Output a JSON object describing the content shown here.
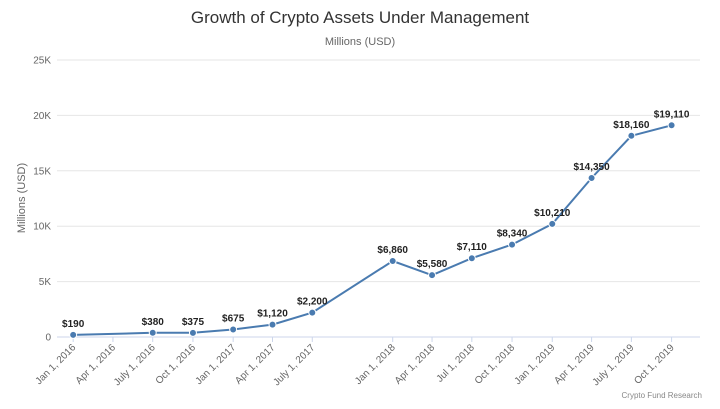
{
  "chart_data": {
    "type": "line",
    "title": "Growth of Crypto Assets Under Management",
    "subtitle": "Millions (USD)",
    "ylabel": "Millions (USD)",
    "xlabel": "",
    "credit": "Crypto Fund Research",
    "ylim": [
      0,
      25000
    ],
    "yticks": [
      0,
      5000,
      10000,
      15000,
      20000,
      25000
    ],
    "ytick_labels": [
      "0",
      "5K",
      "10K",
      "15K",
      "20K",
      "25K"
    ],
    "categories": [
      "Jan 1, 2016",
      "Apr 1, 2016",
      "July 1, 2016",
      "Oct 1, 2016",
      "Jan 1, 2017",
      "Apr 1, 2017",
      "July 1, 2017",
      "Jan 1, 2018",
      "Apr 1, 2018",
      "Jul 1, 2018",
      "Oct 1, 2018",
      "Jan 1, 2019",
      "Apr 1, 2019",
      "July 1, 2019",
      "Oct 1, 2019"
    ],
    "points": [
      {
        "date": "2016-01-01",
        "value": 190,
        "label": "$190"
      },
      {
        "date": "2016-07-01",
        "value": 380,
        "label": "$380"
      },
      {
        "date": "2016-10-01",
        "value": 375,
        "label": "$375"
      },
      {
        "date": "2017-01-01",
        "value": 675,
        "label": "$675"
      },
      {
        "date": "2017-04-01",
        "value": 1120,
        "label": "$1,120"
      },
      {
        "date": "2017-07-01",
        "value": 2200,
        "label": "$2,200"
      },
      {
        "date": "2018-01-01",
        "value": 6860,
        "label": "$6,860"
      },
      {
        "date": "2018-04-01",
        "value": 5580,
        "label": "$5,580"
      },
      {
        "date": "2018-07-01",
        "value": 7110,
        "label": "$7,110"
      },
      {
        "date": "2018-10-01",
        "value": 8340,
        "label": "$8,340"
      },
      {
        "date": "2019-01-01",
        "value": 10210,
        "label": "$10,210"
      },
      {
        "date": "2019-04-01",
        "value": 14350,
        "label": "$14,350"
      },
      {
        "date": "2019-07-01",
        "value": 18160,
        "label": "$18,160"
      },
      {
        "date": "2019-10-01",
        "value": 19110,
        "label": "$19,110"
      }
    ],
    "grid": true,
    "legend": "none",
    "colors": {
      "line": "#4a7bb0",
      "marker": "#4a7bb0",
      "grid": "#e6e6e6",
      "axis": "#ccd6eb"
    }
  }
}
